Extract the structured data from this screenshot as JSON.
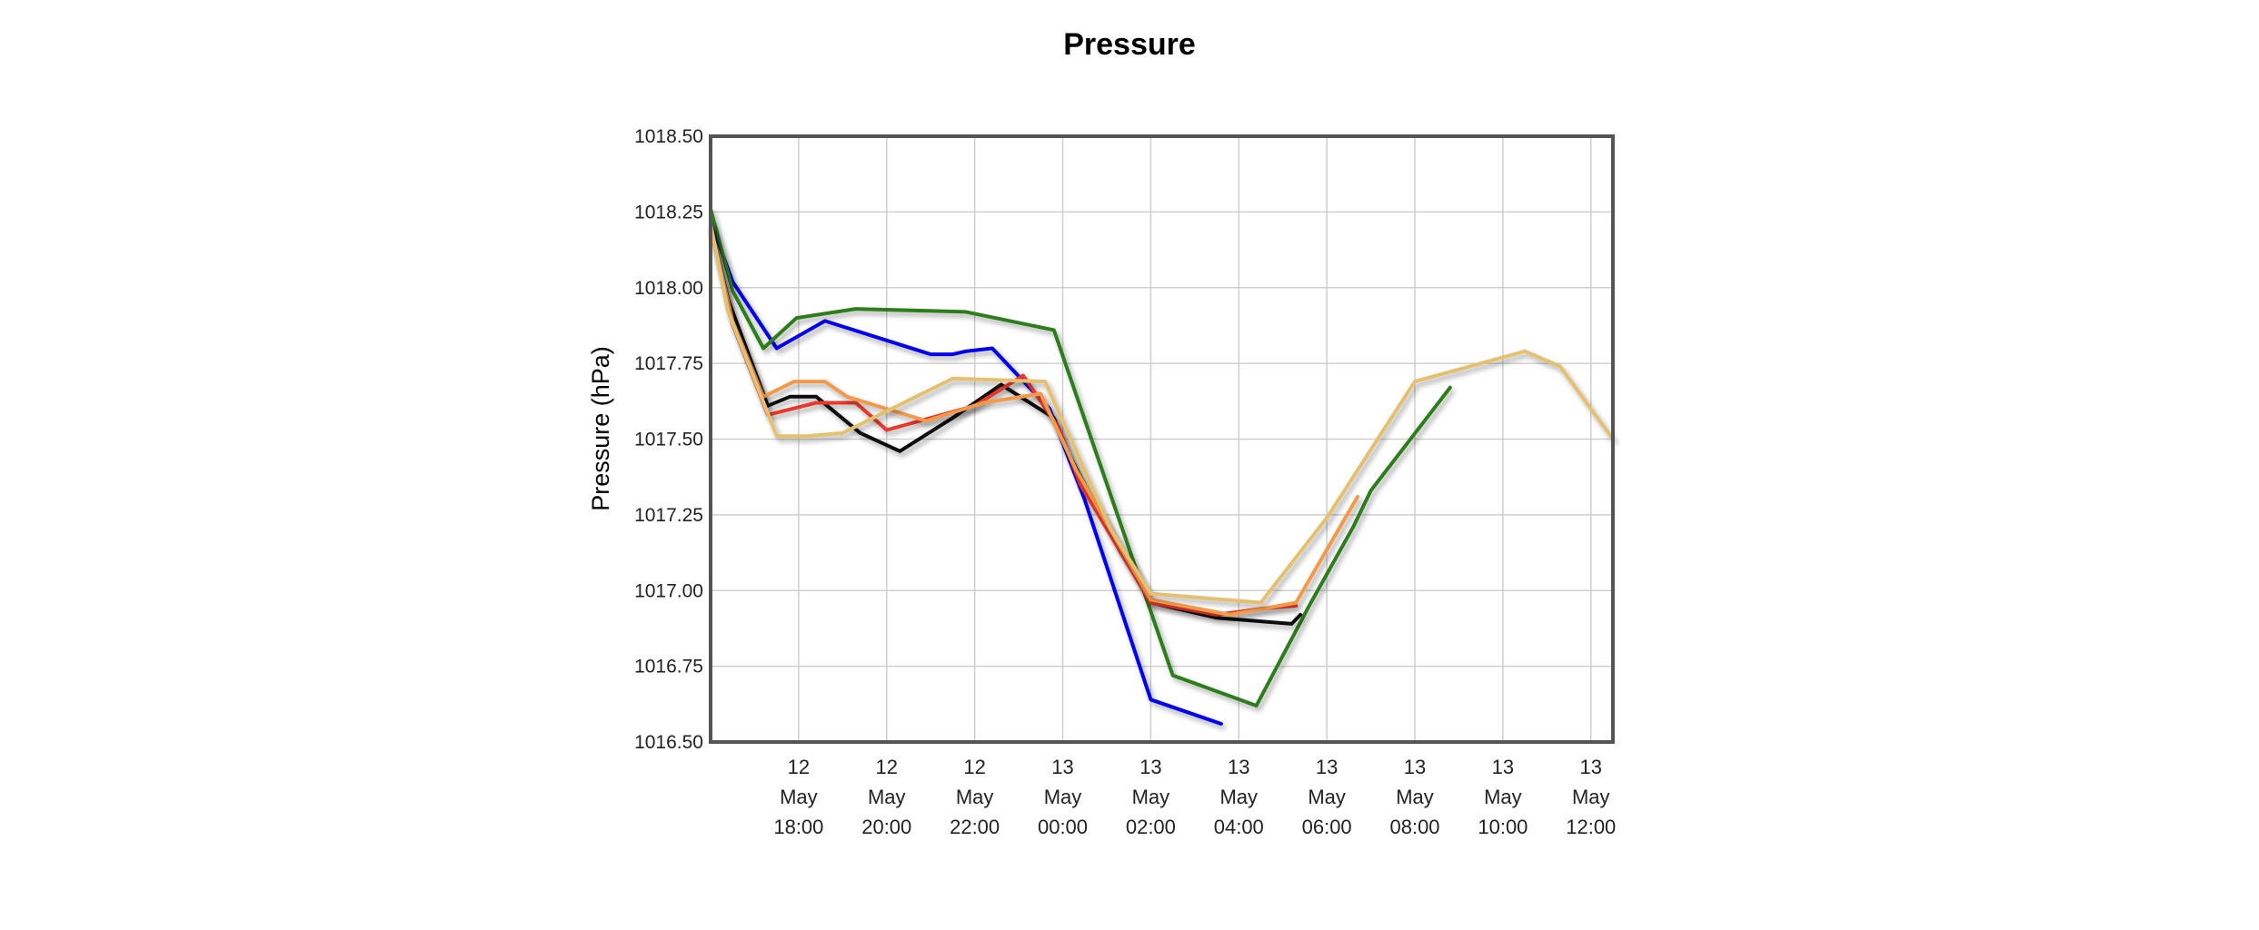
{
  "chart_data": {
    "type": "line",
    "title": "Pressure",
    "ylabel": "Pressure (hPa)",
    "ylim": [
      1016.5,
      1018.5
    ],
    "xlim": [
      -2,
      18.5
    ],
    "yticks": [
      "1018.50",
      "1018.25",
      "1018.00",
      "1017.75",
      "1017.50",
      "1017.25",
      "1017.00",
      "1016.75",
      "1016.50"
    ],
    "xticks": [
      {
        "x": 0,
        "lines": [
          "12",
          "May",
          "18:00"
        ]
      },
      {
        "x": 2,
        "lines": [
          "12",
          "May",
          "20:00"
        ]
      },
      {
        "x": 4,
        "lines": [
          "12",
          "May",
          "22:00"
        ]
      },
      {
        "x": 6,
        "lines": [
          "13",
          "May",
          "00:00"
        ]
      },
      {
        "x": 8,
        "lines": [
          "13",
          "May",
          "02:00"
        ]
      },
      {
        "x": 10,
        "lines": [
          "13",
          "May",
          "04:00"
        ]
      },
      {
        "x": 12,
        "lines": [
          "13",
          "May",
          "06:00"
        ]
      },
      {
        "x": 14,
        "lines": [
          "13",
          "May",
          "08:00"
        ]
      },
      {
        "x": 16,
        "lines": [
          "13",
          "May",
          "10:00"
        ]
      },
      {
        "x": 18,
        "lines": [
          "13",
          "May",
          "12:00"
        ]
      }
    ],
    "grid": true,
    "series": [
      {
        "color": "#0000ee",
        "points": [
          [
            -2,
            1018.22
          ],
          [
            -1.5,
            1018.02
          ],
          [
            -0.5,
            1017.8
          ],
          [
            0.6,
            1017.89
          ],
          [
            3,
            1017.78
          ],
          [
            3.5,
            1017.78
          ],
          [
            3.8,
            1017.79
          ],
          [
            4.4,
            1017.8
          ],
          [
            5.7,
            1017.6
          ],
          [
            6.5,
            1017.3
          ],
          [
            8,
            1016.64
          ],
          [
            9.6,
            1016.56
          ]
        ]
      },
      {
        "color": "#2e7d1e",
        "points": [
          [
            -2,
            1018.26
          ],
          [
            -1.5,
            1017.99
          ],
          [
            -0.8,
            1017.8
          ],
          [
            -0.05,
            1017.9
          ],
          [
            1.3,
            1017.93
          ],
          [
            3.8,
            1017.92
          ],
          [
            5.8,
            1017.86
          ],
          [
            8.5,
            1016.72
          ],
          [
            10.4,
            1016.62
          ],
          [
            11.6,
            1016.95
          ],
          [
            12.6,
            1017.21
          ],
          [
            13,
            1017.33
          ],
          [
            14.8,
            1017.67
          ]
        ]
      },
      {
        "color": "#111111",
        "points": [
          [
            -2,
            1018.2
          ],
          [
            -1.6,
            1017.96
          ],
          [
            -0.7,
            1017.61
          ],
          [
            -0.2,
            1017.64
          ],
          [
            0.4,
            1017.64
          ],
          [
            1.4,
            1017.52
          ],
          [
            2.3,
            1017.46
          ],
          [
            3.5,
            1017.57
          ],
          [
            4.6,
            1017.68
          ],
          [
            5.8,
            1017.57
          ],
          [
            6.1,
            1017.46
          ],
          [
            7.3,
            1017.13
          ],
          [
            8,
            1016.96
          ],
          [
            9.5,
            1016.91
          ],
          [
            11.2,
            1016.89
          ],
          [
            11.4,
            1016.92
          ]
        ]
      },
      {
        "color": "#e8382a",
        "points": [
          [
            -2,
            1018.2
          ],
          [
            -1.5,
            1017.88
          ],
          [
            -0.7,
            1017.58
          ],
          [
            0.4,
            1017.62
          ],
          [
            1.3,
            1017.62
          ],
          [
            2,
            1017.53
          ],
          [
            3,
            1017.57
          ],
          [
            4,
            1017.61
          ],
          [
            5.1,
            1017.71
          ],
          [
            5.9,
            1017.54
          ],
          [
            6.4,
            1017.35
          ],
          [
            7.1,
            1017.18
          ],
          [
            8,
            1016.96
          ],
          [
            9.5,
            1016.92
          ],
          [
            10.5,
            1016.94
          ],
          [
            11.3,
            1016.95
          ]
        ]
      },
      {
        "color": "#f29a4a",
        "points": [
          [
            -2,
            1018.2
          ],
          [
            -1.5,
            1017.89
          ],
          [
            -0.8,
            1017.64
          ],
          [
            -0.1,
            1017.69
          ],
          [
            0.6,
            1017.69
          ],
          [
            1.1,
            1017.64
          ],
          [
            2.9,
            1017.56
          ],
          [
            4.2,
            1017.62
          ],
          [
            5.5,
            1017.65
          ],
          [
            6.3,
            1017.4
          ],
          [
            8,
            1016.97
          ],
          [
            9.8,
            1016.92
          ],
          [
            11.3,
            1016.96
          ],
          [
            12.7,
            1017.31
          ]
        ]
      },
      {
        "color": "#e4c070",
        "points": [
          [
            -2,
            1018.21
          ],
          [
            -1.6,
            1017.92
          ],
          [
            -0.5,
            1017.51
          ],
          [
            0.2,
            1017.51
          ],
          [
            1,
            1017.52
          ],
          [
            3.5,
            1017.7
          ],
          [
            5.6,
            1017.69
          ],
          [
            7.1,
            1017.2
          ],
          [
            8,
            1016.99
          ],
          [
            10.5,
            1016.96
          ],
          [
            12,
            1017.24
          ],
          [
            14,
            1017.69
          ],
          [
            16.5,
            1017.79
          ],
          [
            17.3,
            1017.74
          ],
          [
            18.5,
            1017.5
          ]
        ]
      }
    ]
  }
}
